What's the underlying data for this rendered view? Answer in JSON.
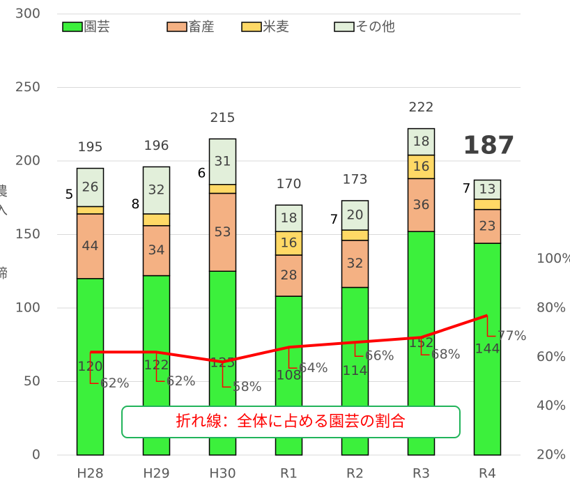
{
  "chart_data": {
    "type": "bar",
    "stacked": true,
    "ylabel": [
      "農",
      "入",
      "締"
    ],
    "categories": [
      "H28",
      "H29",
      "H30",
      "R1",
      "R2",
      "R3",
      "R4"
    ],
    "series": [
      {
        "name": "園芸",
        "color": "#3cf03c",
        "values": [
          120,
          122,
          125,
          108,
          114,
          152,
          144
        ]
      },
      {
        "name": "畜産",
        "color": "#f4b183",
        "values": [
          44,
          34,
          53,
          28,
          32,
          36,
          23
        ]
      },
      {
        "name": "米麦",
        "color": "#ffd966",
        "values": [
          5,
          8,
          6,
          16,
          7,
          16,
          7
        ]
      },
      {
        "name": "その他",
        "color": "#e2efda",
        "values": [
          26,
          32,
          31,
          18,
          20,
          18,
          13
        ]
      },
      {
        "name": "園芸の割合",
        "type": "line",
        "axis": "y2",
        "color": "#ff0000",
        "values": [
          62,
          62,
          58,
          64,
          66,
          68,
          77
        ],
        "value_labels": [
          "62%",
          "62%",
          "58%",
          "64%",
          "66%",
          "68%",
          "77%"
        ]
      }
    ],
    "totals": [
      195,
      196,
      215,
      170,
      173,
      222,
      187
    ],
    "ylim": [
      0,
      300
    ],
    "yticks": [
      0,
      50,
      100,
      150,
      200,
      250,
      300
    ],
    "y2lim": [
      20,
      200
    ],
    "y2ticks": [
      {
        "value": 20,
        "label": "20%"
      },
      {
        "value": 40,
        "label": "40%"
      },
      {
        "value": 60,
        "label": "60%"
      },
      {
        "value": 80,
        "label": "80%"
      },
      {
        "value": 100,
        "label": "100%"
      }
    ],
    "grid": true,
    "legend": "top",
    "annotation": "折れ線：全体に占める園芸の割合"
  }
}
